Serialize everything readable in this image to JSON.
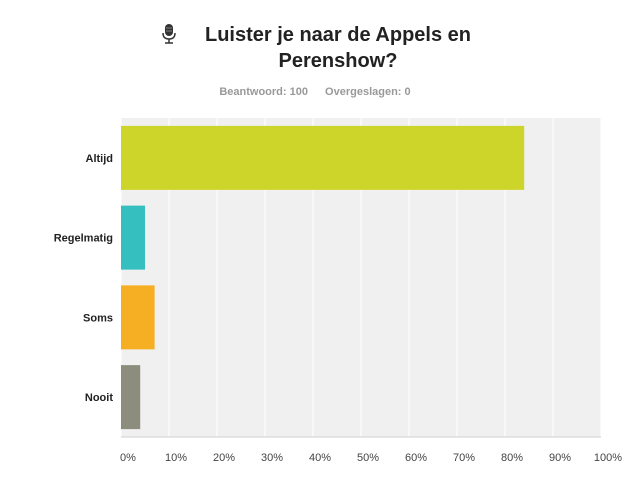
{
  "header": {
    "icon": "microphone-icon",
    "title": "Luister je naar de Appels en Perenshow?",
    "answered": "Beantwoord: 100",
    "skipped": "Overgeslagen: 0"
  },
  "chart_data": {
    "type": "bar",
    "orientation": "horizontal",
    "title": "Luister je naar de Appels en Perenshow?",
    "categories": [
      "Altijd",
      "Regelmatig",
      "Soms",
      "Nooit"
    ],
    "values": [
      84,
      5,
      7,
      4
    ],
    "colors": [
      "#cdd52a",
      "#35bfbf",
      "#f6ae23",
      "#8d8d7d"
    ],
    "xlim": [
      0,
      100
    ],
    "xticks": [
      "0%",
      "10%",
      "20%",
      "30%",
      "40%",
      "50%",
      "60%",
      "70%",
      "80%",
      "90%",
      "100%"
    ],
    "grid": true
  }
}
